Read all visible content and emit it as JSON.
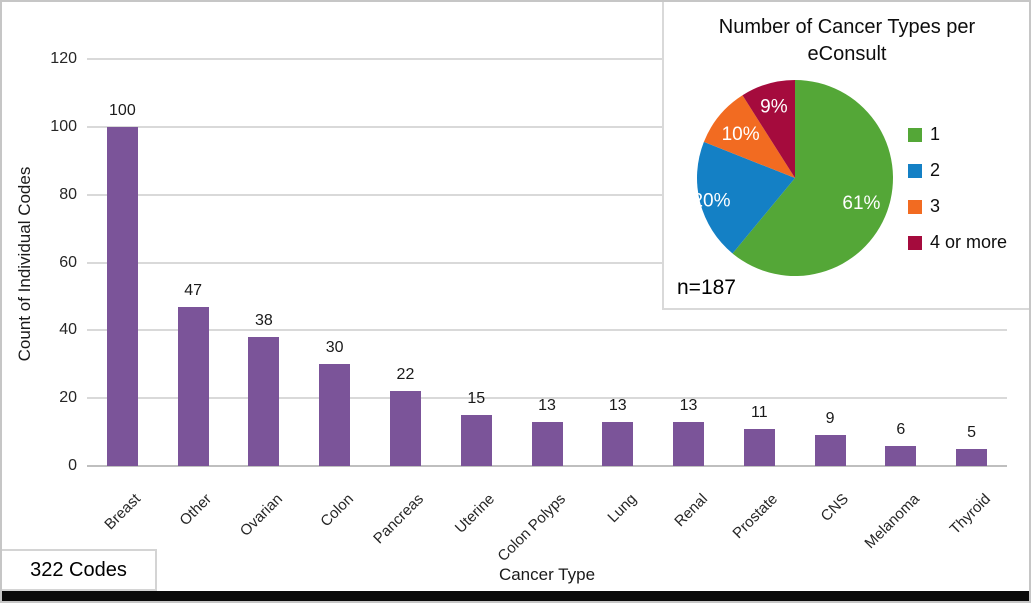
{
  "frame": {
    "codes_label": "322 Codes"
  },
  "chart_data": [
    {
      "type": "bar",
      "title": "",
      "categories": [
        "Breast",
        "Other",
        "Ovarian",
        "Colon",
        "Pancreas",
        "Uterine",
        "Colon Polyps",
        "Lung",
        "Renal",
        "Prostate",
        "CNS",
        "Melanoma",
        "Thyroid"
      ],
      "values": [
        100,
        47,
        38,
        30,
        22,
        15,
        13,
        13,
        13,
        11,
        9,
        6,
        5
      ],
      "xlabel": "Cancer Type",
      "ylabel": "Count of Individual Codes",
      "ylim": [
        0,
        120
      ],
      "ytick_step": 20,
      "bar_color": "#7b5499",
      "grid": true,
      "total_annotation": "322 Codes"
    },
    {
      "type": "pie",
      "title": "Number of Cancer Types per eConsult",
      "labels": [
        "1",
        "2",
        "3",
        "4 or more"
      ],
      "values": [
        61,
        20,
        10,
        9
      ],
      "value_labels": [
        "61%",
        "20%",
        "10%",
        "9%"
      ],
      "colors": [
        "#54a737",
        "#1480c5",
        "#f26b21",
        "#a50b3d"
      ],
      "n_label": "n=187",
      "legend_position": "right"
    }
  ]
}
